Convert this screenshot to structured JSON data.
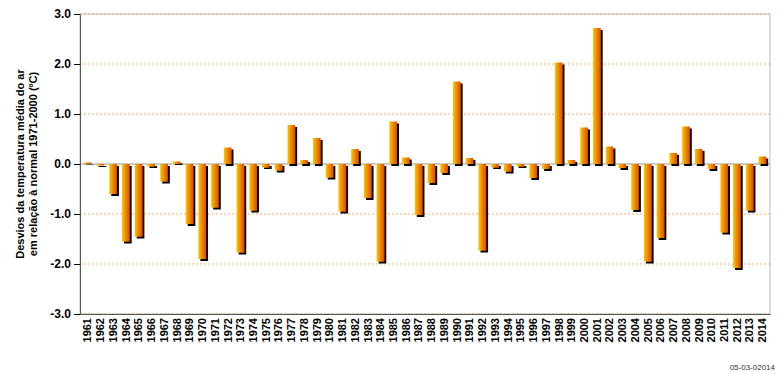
{
  "chart_data": {
    "type": "bar",
    "ylabel": [
      "Desvios da temperatura média do ar",
      "em relação à normal 1971-2000 (ºC)"
    ],
    "annotations": [
      "05-03-02014"
    ],
    "categories": [
      "1961",
      "1962",
      "1963",
      "1964",
      "1965",
      "1966",
      "1967",
      "1968",
      "1969",
      "1970",
      "1971",
      "1972",
      "1973",
      "1974",
      "1975",
      "1976",
      "1977",
      "1978",
      "1979",
      "1980",
      "1981",
      "1982",
      "1983",
      "1984",
      "1985",
      "1986",
      "1987",
      "1988",
      "1989",
      "1990",
      "1991",
      "1992",
      "1993",
      "1994",
      "1995",
      "1996",
      "1997",
      "1998",
      "1999",
      "2000",
      "2001",
      "2002",
      "2003",
      "2004",
      "2005",
      "2006",
      "2007",
      "2008",
      "2009",
      "2010",
      "2011",
      "2012",
      "2013",
      "2014"
    ],
    "values": [
      0.03,
      -0.03,
      -0.6,
      -1.55,
      -1.45,
      -0.05,
      -0.35,
      0.05,
      -1.2,
      -1.9,
      -0.87,
      0.33,
      -1.77,
      -0.93,
      -0.07,
      -0.13,
      0.78,
      0.08,
      0.52,
      -0.27,
      -0.95,
      0.3,
      -0.68,
      -1.95,
      0.85,
      0.13,
      -1.02,
      -0.38,
      -0.18,
      1.65,
      0.12,
      -1.73,
      -0.07,
      -0.15,
      -0.05,
      -0.28,
      -0.1,
      2.03,
      0.08,
      0.73,
      2.72,
      0.35,
      -0.08,
      -0.92,
      -1.95,
      -1.48,
      0.22,
      0.75,
      0.3,
      -0.1,
      -1.37,
      -2.08,
      -0.93,
      0.15
    ],
    "color": "#f08a00",
    "ylim": [
      -3,
      3
    ],
    "yticks": [
      {
        "value": -3,
        "label": "-3.0"
      },
      {
        "value": -2,
        "label": "-2.0"
      },
      {
        "value": -1,
        "label": "-1.0"
      },
      {
        "value": 0,
        "label": "0.0"
      },
      {
        "value": 1,
        "label": "1.0"
      },
      {
        "value": 2,
        "label": "2.0"
      },
      {
        "value": 3,
        "label": "3.0"
      }
    ],
    "grid": true
  }
}
